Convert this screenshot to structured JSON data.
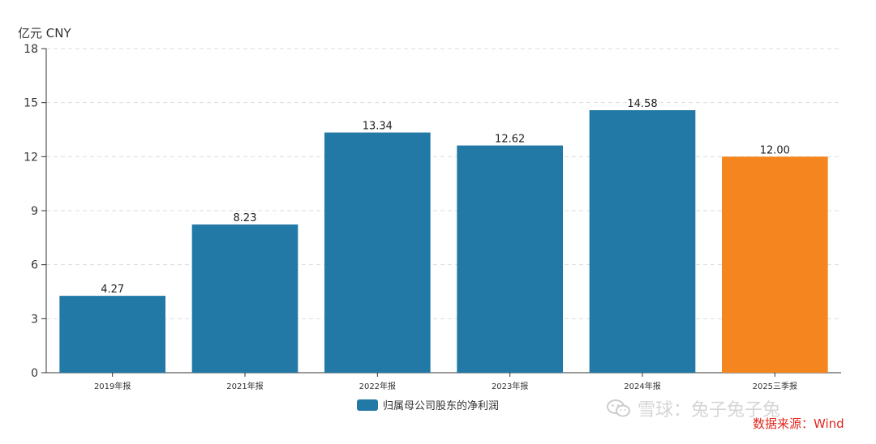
{
  "chart_data": {
    "type": "bar",
    "unit_label": "亿元  CNY",
    "categories": [
      "2019年报",
      "2021年报",
      "2022年报",
      "2023年报",
      "2024年报",
      "2025三季报"
    ],
    "series": [
      {
        "name": "归属母公司股东的净利润",
        "values": [
          4.27,
          8.23,
          13.34,
          12.62,
          14.58,
          12.0
        ]
      }
    ],
    "data_labels": [
      "4.27",
      "8.23",
      "13.34",
      "12.62",
      "14.58",
      "12.00"
    ],
    "ylim": [
      0,
      18
    ],
    "yticks": [
      0,
      3,
      6,
      9,
      12,
      15,
      18
    ],
    "grid": true,
    "legend_position": "bottom-center",
    "colors": {
      "bar": "#2279a6",
      "highlight": "#f5861f",
      "grid": "#dddddd",
      "axis": "#333333"
    },
    "highlight_index": 5
  },
  "watermark": {
    "text": "雪球：兔子兔子兔",
    "icon": "wechat-icon"
  },
  "source_note": "数据来源：Wind"
}
